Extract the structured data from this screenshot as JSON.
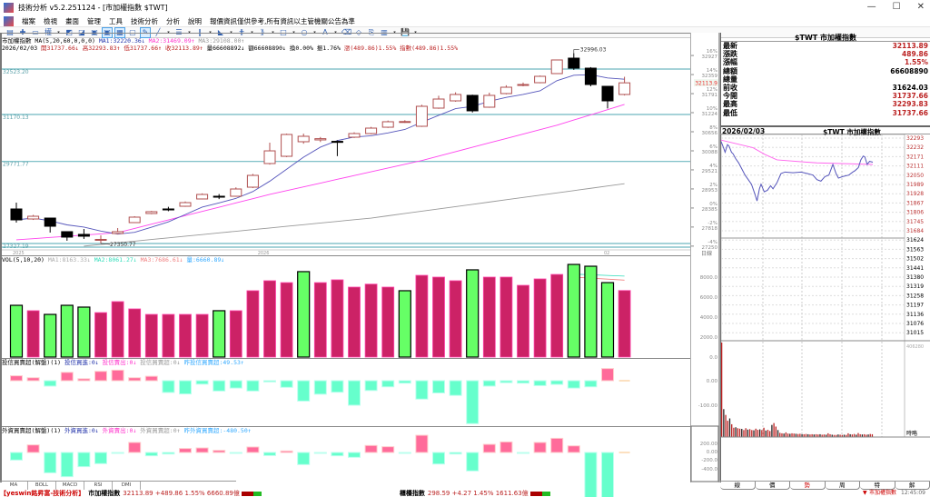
{
  "window": {
    "title": "技術分析 v5.2.251124 - [市加權指數 $TWT]",
    "controls": [
      "—",
      "☐",
      "✕"
    ]
  },
  "menu": [
    "檔案",
    "檢視",
    "畫面",
    "管理",
    "工具",
    "技術分析",
    "分析",
    "說明",
    "報價資訊僅供參考,所有資訊以主管機關公告為準"
  ],
  "toolbar": {
    "icons": [
      {
        "name": "chart-type-icon",
        "g": "▤"
      },
      {
        "name": "crosshair-icon",
        "g": "✚"
      },
      {
        "name": "overlay-icon",
        "g": "▭"
      },
      {
        "name": "rights-icon",
        "g": "權"
      },
      {
        "name": "arrow-icon",
        "g": "▾",
        "arrow": true
      },
      {
        "name": "color-bars-icon",
        "g": "◩"
      },
      {
        "name": "compare-icon",
        "g": "◪"
      },
      {
        "name": "chart1-icon",
        "g": "▣"
      },
      {
        "name": "chart2-icon",
        "g": "▣",
        "active": true
      },
      {
        "name": "chart3-icon",
        "g": "▦",
        "active": true
      },
      {
        "name": "window-icon",
        "g": "▢"
      },
      {
        "name": "draw-cursor-icon",
        "g": "✎",
        "active": true
      },
      {
        "name": "line-icon",
        "g": "╱"
      },
      {
        "name": "arrow-icon",
        "g": "▾",
        "arrow": true
      },
      {
        "name": "fibonacci-icon",
        "g": "☰"
      },
      {
        "name": "arrow-icon",
        "g": "▾",
        "arrow": true
      },
      {
        "name": "parallel-lines-icon",
        "g": "‖"
      },
      {
        "name": "arrow-icon",
        "g": "▾",
        "arrow": true
      },
      {
        "name": "fan-icon",
        "g": "◣"
      },
      {
        "name": "arrow-icon",
        "g": "▾",
        "arrow": true
      },
      {
        "name": "gann-icon",
        "g": "⋕"
      },
      {
        "name": "arrow-icon",
        "g": "▾",
        "arrow": true
      },
      {
        "name": "pattern-icon",
        "g": "⟫"
      },
      {
        "name": "arrow-icon",
        "g": "▾",
        "arrow": true
      },
      {
        "name": "rectangle-icon",
        "g": "□"
      },
      {
        "name": "arrow-icon",
        "g": "▾",
        "arrow": true
      },
      {
        "name": "ellipse-icon",
        "g": "○"
      },
      {
        "name": "arrow-icon",
        "g": "▾",
        "arrow": true
      },
      {
        "name": "text-icon",
        "g": "A"
      },
      {
        "name": "arrow-icon",
        "g": "▾",
        "arrow": true
      },
      {
        "name": "delete-drawing-icon",
        "g": "⌫"
      },
      {
        "name": "eraser-icon",
        "g": "◇"
      },
      {
        "name": "copy-icon",
        "g": "⎘"
      },
      {
        "name": "palette-icon",
        "g": "▥"
      },
      {
        "name": "arrow-icon",
        "g": "▾",
        "arrow": true
      },
      {
        "name": "save-icon",
        "g": "💾"
      },
      {
        "name": "arrow-icon",
        "g": "▾",
        "arrow": true
      }
    ]
  },
  "main": {
    "line1": [
      {
        "t": "市加權指數 MA(5,20,60,0,0,0) ",
        "c": "#000"
      },
      {
        "t": "MA1:32220.36↓ ",
        "c": "#2233aa"
      },
      {
        "t": "MA2:31469.09↑ ",
        "c": "#ff33cc"
      },
      {
        "t": "MA3:29108.00↑",
        "c": "#999"
      }
    ],
    "line2": [
      {
        "t": "2026/02/03 ",
        "c": "#000"
      },
      {
        "t": "開31737.66↓ ",
        "c": "#b22"
      },
      {
        "t": "高32293.83↑ ",
        "c": "#b22"
      },
      {
        "t": "低31737.66↑ ",
        "c": "#b22"
      },
      {
        "t": "收32113.89↑ ",
        "c": "#b22"
      },
      {
        "t": "量66608892↓ ",
        "c": "#000"
      },
      {
        "t": "額66608890↓ ",
        "c": "#000"
      },
      {
        "t": "換0.00% ",
        "c": "#000"
      },
      {
        "t": "振1.76% ",
        "c": "#000"
      },
      {
        "t": "漲(489.86)1.55% ",
        "c": "#b22"
      },
      {
        "t": "指數(489.86)1.55%",
        "c": "#b22"
      }
    ],
    "hlines": [
      {
        "label": "32523.20",
        "p": 32523.2
      },
      {
        "label": "31170.13",
        "p": 31170.13
      },
      {
        "label": "29771.77",
        "p": 29771.77
      },
      {
        "label": "27327.19",
        "p": 27327.19
      }
    ],
    "candles": [
      [
        28356,
        28545,
        27950,
        28031
      ],
      [
        28058,
        28180,
        28030,
        28139
      ],
      [
        28085,
        28085,
        27653,
        27842
      ],
      [
        27680,
        27680,
        27410,
        27518
      ],
      [
        27599,
        27760,
        27464,
        27545
      ],
      [
        27437,
        27570,
        27329,
        27450
      ],
      [
        27626,
        27788,
        27600,
        27680
      ],
      [
        27950,
        28140,
        27940,
        28113
      ],
      [
        28221,
        28300,
        28200,
        28275
      ],
      [
        28356,
        28420,
        28290,
        28340
      ],
      [
        28437,
        28580,
        28420,
        28545
      ],
      [
        28654,
        28820,
        28640,
        28789
      ],
      [
        28735,
        28800,
        28650,
        28730
      ],
      [
        28735,
        29000,
        28720,
        28951
      ],
      [
        29005,
        29400,
        28980,
        29357
      ],
      [
        29709,
        30332,
        29680,
        30087
      ],
      [
        29925,
        30600,
        29900,
        30575
      ],
      [
        30359,
        30600,
        30300,
        30521
      ],
      [
        30413,
        30500,
        30350,
        30450
      ],
      [
        30370,
        30400,
        29930,
        30340
      ],
      [
        30494,
        30640,
        30470,
        30602
      ],
      [
        30602,
        30800,
        30580,
        30764
      ],
      [
        30791,
        30990,
        30770,
        30954
      ],
      [
        30950,
        31000,
        30920,
        30960
      ],
      [
        30819,
        31460,
        30800,
        31414
      ],
      [
        31360,
        31730,
        31340,
        31630
      ],
      [
        31576,
        31830,
        31550,
        31766
      ],
      [
        31739,
        31760,
        31230,
        31279
      ],
      [
        31387,
        31820,
        31370,
        31739
      ],
      [
        31793,
        32040,
        31770,
        31982
      ],
      [
        32036,
        32120,
        32010,
        32063
      ],
      [
        32117,
        32330,
        32100,
        32307
      ],
      [
        32388,
        32800,
        32380,
        32794
      ],
      [
        32848,
        32996,
        32500,
        32550
      ],
      [
        32550,
        32580,
        32009,
        32063
      ],
      [
        32009,
        32009,
        31350,
        31576
      ],
      [
        31766,
        32293,
        31737,
        32113
      ]
    ],
    "ma2_knots": [
      [
        0,
        27437
      ],
      [
        6,
        27650
      ],
      [
        15,
        28790
      ],
      [
        24,
        29800
      ],
      [
        32,
        30850
      ],
      [
        36,
        31469
      ]
    ],
    "ma3_knots": [
      [
        4,
        27250
      ],
      [
        21,
        28085
      ],
      [
        36,
        29108
      ]
    ],
    "high_label": "32996.03",
    "low_label": "27350.77",
    "dates": [
      {
        "i": 0,
        "t": "2025"
      },
      {
        "i": 14.5,
        "t": "2026"
      },
      {
        "i": 35,
        "t": "02"
      }
    ],
    "axis": [
      {
        "pct": "16%",
        "p": 32927
      },
      {
        "pct": "14%",
        "p": 32359
      },
      {
        "pct": "12%",
        "p": 31791
      },
      {
        "pct": "10%",
        "p": 31224
      },
      {
        "pct": "8%",
        "p": 30656
      },
      {
        "pct": "6%",
        "p": 30088
      },
      {
        "pct": "4%",
        "p": 29521
      },
      {
        "pct": "2%",
        "p": 28953
      },
      {
        "pct": "0%",
        "p": 28385
      },
      {
        "pct": "-2%",
        "p": 27818
      },
      {
        "pct": "-4%",
        "p": 27250
      }
    ],
    "current": "32113.9",
    "axis_footer": "日線",
    "colors": {
      "up": "#b05050",
      "down": "#000000",
      "ma1": "#5555bb",
      "ma2": "#ff44ee",
      "ma3": "#999999",
      "hline": "#6fb8c0"
    }
  },
  "volume": {
    "header": [
      {
        "t": "VOL(5,10,20) ",
        "c": "#000"
      },
      {
        "t": "MA1:8163.33↓ ",
        "c": "#aaa"
      },
      {
        "t": "MA2:8061.27↓ ",
        "c": "#33ddbb"
      },
      {
        "t": "MA3:7686.61↓ ",
        "c": "#f08080"
      },
      {
        "t": "量:6660.89↓",
        "c": "#33aaff"
      }
    ],
    "values": [
      5180,
      4640,
      4270,
      5180,
      5000,
      4450,
      5550,
      4820,
      4270,
      4270,
      4270,
      4270,
      4640,
      4640,
      6640,
      7640,
      7450,
      8550,
      7450,
      7730,
      7000,
      7300,
      7000,
      6640,
      8180,
      8000,
      7640,
      8730,
      8000,
      8000,
      7180,
      7820,
      8270,
      9270,
      9090,
      7450,
      6660.89
    ],
    "down": [
      0,
      2,
      3,
      4,
      12,
      17,
      23,
      27,
      33,
      34,
      35
    ],
    "axis": [
      "8000.0",
      "6000.0",
      "4000.0",
      "2000.0",
      "0.0"
    ],
    "axis_vals": [
      8000,
      6000,
      4000,
      2000,
      0
    ]
  },
  "trust": {
    "header": [
      {
        "t": "投信買賣超(解盤)(1) ",
        "c": "#000"
      },
      {
        "t": "投信買進:0↓ ",
        "c": "#2233aa"
      },
      {
        "t": "投信賣出:0↓ ",
        "c": "#ff33cc"
      },
      {
        "t": "投信買賣超:0↓ ",
        "c": "#999"
      },
      {
        "t": "昨投信買賣超:49.53↑",
        "c": "#33aaff"
      }
    ],
    "values": [
      20,
      12,
      -22,
      34,
      8,
      38,
      43,
      12,
      18,
      -48,
      -54,
      -14,
      -42,
      -30,
      -42,
      -5,
      -27,
      -83,
      -55,
      -47,
      -100,
      -40,
      -25,
      -10,
      -75,
      -50,
      -60,
      -175,
      -22,
      -8,
      -10,
      -20,
      -15,
      -30,
      -25,
      49.53,
      0
    ],
    "axis": [
      "0.00",
      "-100.00"
    ],
    "axis_vals": [
      0,
      -100
    ]
  },
  "foreign": {
    "header": [
      {
        "t": "外資買賣超(解盤)(1) ",
        "c": "#000"
      },
      {
        "t": "外資買進:0↓ ",
        "c": "#2233aa"
      },
      {
        "t": "外資賣出:0↓ ",
        "c": "#ff33cc"
      },
      {
        "t": "外資買賣超:0↑ ",
        "c": "#999"
      },
      {
        "t": "昨外資買賣超:-480.50↑",
        "c": "#33aaff"
      }
    ],
    "values": [
      -80,
      80,
      -215,
      -256,
      -150,
      -118,
      -5,
      106,
      -35,
      -16,
      42,
      48,
      22,
      -3,
      58,
      -32,
      16,
      -128,
      -3,
      -35,
      -51,
      74,
      61,
      -3,
      182,
      -122,
      -16,
      -195,
      86,
      112,
      -3,
      106,
      150,
      70,
      -496,
      -480.5,
      0
    ],
    "axis": [
      "200.00",
      "0.00",
      "-200.0",
      "-400.0"
    ]
  },
  "quote": {
    "title": "$TWT 市加權指數",
    "rows": [
      {
        "label": "最新",
        "value": "32113.89",
        "color": "#b22"
      },
      {
        "label": "漲跌",
        "value": "489.86",
        "color": "#b22"
      },
      {
        "label": "漲幅",
        "value": "1.55%",
        "color": "#b22"
      },
      {
        "label": "總額",
        "value": "66608890",
        "color": "#000"
      },
      {
        "label": "總量",
        "value": "",
        "color": "#000"
      },
      {
        "label": "前收",
        "value": "31624.03",
        "color": "#000"
      },
      {
        "label": "今開",
        "value": "31737.66",
        "color": "#b22"
      },
      {
        "label": "最高",
        "value": "32293.83",
        "color": "#b22"
      },
      {
        "label": "最低",
        "value": "31737.66",
        "color": "#b22"
      }
    ]
  },
  "intraday": {
    "date": "2026/02/03",
    "title": "$TWT 市加權指數",
    "axis_up": [
      "32293",
      "32232",
      "32171",
      "32111",
      "32050",
      "31989",
      "31928",
      "31867",
      "31806",
      "31745",
      "31684"
    ],
    "axis_dn": [
      "31624",
      "31563",
      "31502",
      "31441",
      "31380",
      "31319",
      "31258",
      "31197",
      "31136",
      "31076",
      "31015"
    ],
    "vol_max": "406280",
    "vol_label": "時略",
    "price": [
      [
        0,
        32270
      ],
      [
        3,
        32230
      ],
      [
        5,
        32200
      ],
      [
        8,
        32250
      ],
      [
        10,
        32240
      ],
      [
        13,
        32200
      ],
      [
        15,
        32190
      ],
      [
        18,
        32160
      ],
      [
        22,
        32130
      ],
      [
        26,
        32090
      ],
      [
        30,
        32050
      ],
      [
        34,
        32020
      ],
      [
        38,
        31990
      ],
      [
        42,
        31930
      ],
      [
        45,
        31880
      ],
      [
        48,
        31960
      ],
      [
        50,
        31990
      ],
      [
        54,
        31940
      ],
      [
        58,
        31950
      ],
      [
        62,
        31980
      ],
      [
        65,
        31960
      ],
      [
        70,
        32000
      ],
      [
        75,
        32060
      ],
      [
        80,
        32070
      ],
      [
        90,
        32065
      ],
      [
        100,
        32070
      ],
      [
        108,
        32060
      ],
      [
        115,
        32050
      ],
      [
        120,
        32020
      ],
      [
        125,
        32010
      ],
      [
        130,
        32040
      ],
      [
        135,
        32050
      ],
      [
        140,
        32120
      ],
      [
        144,
        32060
      ],
      [
        147,
        32030
      ],
      [
        152,
        32040
      ],
      [
        160,
        32050
      ],
      [
        165,
        32070
      ],
      [
        168,
        32080
      ],
      [
        172,
        32100
      ],
      [
        175,
        32150
      ],
      [
        178,
        32175
      ],
      [
        180,
        32170
      ],
      [
        183,
        32120
      ],
      [
        186,
        32140
      ],
      [
        190,
        32135
      ]
    ],
    "ma": [
      [
        0,
        32280
      ],
      [
        40,
        32230
      ],
      [
        55,
        32185
      ],
      [
        70,
        32150
      ],
      [
        120,
        32130
      ],
      [
        190,
        32120
      ]
    ],
    "vol": [
      406280,
      120000,
      95000,
      70000,
      80000,
      55000,
      40000,
      42000,
      38000,
      36000,
      35000,
      30000,
      38000,
      32000,
      34000,
      30000,
      29000,
      36000,
      31000,
      33000,
      30000,
      40000,
      28000,
      31000,
      26000,
      52000,
      60000,
      45000,
      30000,
      18000,
      16000,
      15000,
      20000,
      15000,
      14000,
      16000,
      15000,
      14000,
      13000,
      14000,
      12000,
      12000,
      13000,
      12000,
      11000,
      12000,
      11000,
      12000,
      11000,
      12000,
      10000,
      11000,
      10000,
      16000,
      12000,
      10000,
      9000,
      9000,
      11000,
      10000,
      9000,
      10000,
      9000,
      16000,
      12000,
      11000,
      13000,
      10000,
      17000,
      12000,
      11000,
      12000,
      10000,
      11000,
      13000,
      12000
    ]
  },
  "tabs_left": [
    "MA",
    "BOLL",
    "MACD",
    "RSI",
    "DMI"
  ],
  "tabs_right": [
    "線",
    "價",
    "勢",
    "周",
    "特",
    "解"
  ],
  "status": {
    "brand": "【yeswin銘昇富-技術分析】",
    "idx1_name": "市加權指數",
    "idx1_vals": "32113.89 +489.86 1.55% 6660.89億",
    "idx2_name": "櫃檯指數",
    "idx2_vals": "298.59 +4.27 1.45% 1611.63億",
    "tray_name": "市加權指數",
    "time": "12:45:09"
  }
}
